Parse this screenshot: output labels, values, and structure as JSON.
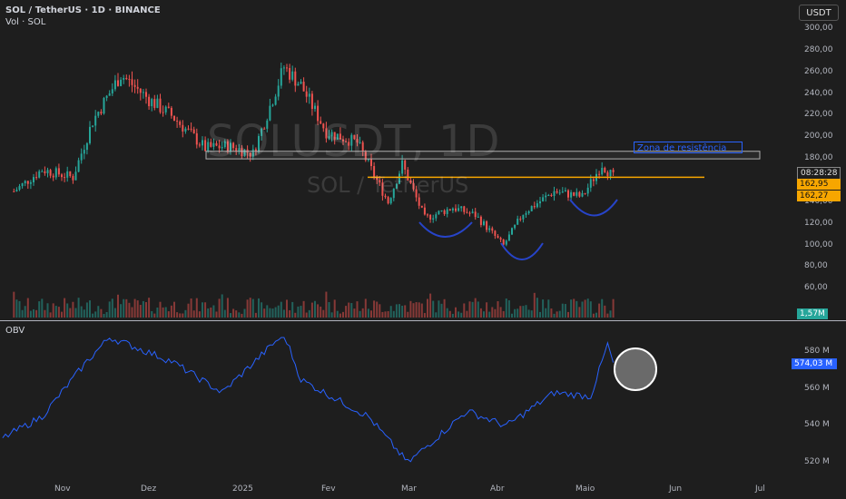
{
  "header": {
    "symbol_line": "SOL / TetherUS · 1D · BINANCE",
    "volume_label": "Vol · SOL",
    "obv_label": "OBV",
    "currency_button": "USDT"
  },
  "watermark": {
    "ticker": "SOLUSDT, 1D",
    "name": "SOL / TetherUS"
  },
  "price_axis": [
    "300,00",
    "280,00",
    "260,00",
    "240,00",
    "220,00",
    "200,00",
    "180,00",
    "160,00",
    "140,00",
    "120,00",
    "100,00",
    "80,00",
    "60,00"
  ],
  "price_tags": {
    "countdown": "08:28:28",
    "price_a": "162,95",
    "price_b": "162,27",
    "volume": "1,57M"
  },
  "obv_axis": [
    "580 M",
    "560 M",
    "540 M",
    "520 M"
  ],
  "obv_tag": "574,03 M",
  "time_axis": [
    "Nov",
    "Dez",
    "2025",
    "Fev",
    "Mar",
    "Abr",
    "Maio",
    "Jun",
    "Jul"
  ],
  "annotations": {
    "resistance_label": "Zona de resistência"
  },
  "colors": {
    "background": "#1e1e1e",
    "up": "#26a69a",
    "down": "#ef5350",
    "obv_line": "#2962ff",
    "orange_line": "#f7a600",
    "resistance_box": "#b0b0b0",
    "arc": "#2744c9"
  },
  "chart_data": {
    "type": "candlestick",
    "title": "SOL / TetherUS · 1D · BINANCE",
    "x": [
      "Nov",
      "Dez",
      "2025",
      "Fev",
      "Mar",
      "Abr",
      "Maio",
      "Jun",
      "Jul"
    ],
    "price_range": [
      60,
      300
    ],
    "close_keypoints": [
      {
        "date": "2024-10-15",
        "close": 150
      },
      {
        "date": "2024-10-25",
        "close": 170
      },
      {
        "date": "2024-11-05",
        "close": 163
      },
      {
        "date": "2024-11-12",
        "close": 215
      },
      {
        "date": "2024-11-22",
        "close": 258
      },
      {
        "date": "2024-12-02",
        "close": 235
      },
      {
        "date": "2024-12-10",
        "close": 220
      },
      {
        "date": "2024-12-22",
        "close": 190
      },
      {
        "date": "2024-12-30",
        "close": 192
      },
      {
        "date": "2025-01-08",
        "close": 185
      },
      {
        "date": "2025-01-19",
        "close": 265
      },
      {
        "date": "2025-01-25",
        "close": 248
      },
      {
        "date": "2025-02-03",
        "close": 205
      },
      {
        "date": "2025-02-14",
        "close": 195
      },
      {
        "date": "2025-02-25",
        "close": 140
      },
      {
        "date": "2025-03-02",
        "close": 175
      },
      {
        "date": "2025-03-10",
        "close": 125
      },
      {
        "date": "2025-03-20",
        "close": 135
      },
      {
        "date": "2025-03-28",
        "close": 128
      },
      {
        "date": "2025-04-07",
        "close": 100
      },
      {
        "date": "2025-04-14",
        "close": 130
      },
      {
        "date": "2025-04-25",
        "close": 150
      },
      {
        "date": "2025-05-05",
        "close": 145
      },
      {
        "date": "2025-05-12",
        "close": 175
      },
      {
        "date": "2025-05-16",
        "close": 163
      }
    ],
    "horizontal_levels": [
      {
        "name": "orange-support",
        "value": 163
      },
      {
        "name": "resistance-zone",
        "from": 180,
        "to": 187
      }
    ],
    "obv": {
      "range": [
        515,
        590
      ],
      "last": 574.03,
      "keypoints": [
        {
          "date": "2024-10-01",
          "value": 525
        },
        {
          "date": "2024-10-25",
          "value": 545
        },
        {
          "date": "2024-11-10",
          "value": 575
        },
        {
          "date": "2024-11-18",
          "value": 588
        },
        {
          "date": "2024-12-10",
          "value": 575
        },
        {
          "date": "2024-12-28",
          "value": 558
        },
        {
          "date": "2025-01-19",
          "value": 590
        },
        {
          "date": "2025-01-25",
          "value": 565
        },
        {
          "date": "2025-02-18",
          "value": 545
        },
        {
          "date": "2025-03-04",
          "value": 520
        },
        {
          "date": "2025-03-25",
          "value": 548
        },
        {
          "date": "2025-04-08",
          "value": 540
        },
        {
          "date": "2025-04-25",
          "value": 558
        },
        {
          "date": "2025-05-08",
          "value": 556
        },
        {
          "date": "2025-05-14",
          "value": 584
        },
        {
          "date": "2025-05-16",
          "value": 574
        }
      ]
    }
  }
}
